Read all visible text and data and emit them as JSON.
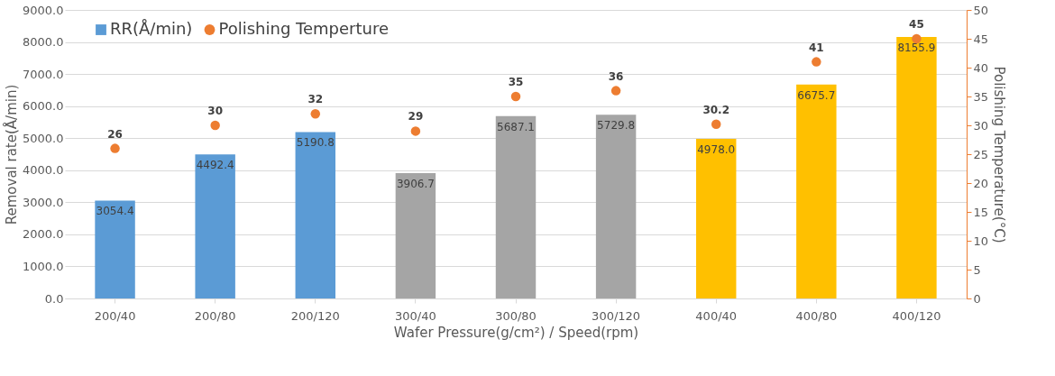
{
  "chart_data": {
    "type": "bar",
    "xlabel": "Wafer Pressure(g/cm²) / Speed(rpm)",
    "ylabel": "Removal rate(Å/min)",
    "y2label": "Polishing Temperature(°C)",
    "categories": [
      "200/40",
      "200/80",
      "200/120",
      "300/40",
      "300/80",
      "300/120",
      "400/40",
      "400/80",
      "400/120"
    ],
    "series": [
      {
        "name": "RR(Å/min)",
        "color": "#5b9bd5",
        "colors": [
          "#5b9bd5",
          "#5b9bd5",
          "#5b9bd5",
          "#a5a5a5",
          "#a5a5a5",
          "#a5a5a5",
          "#ffc000",
          "#ffc000",
          "#ffc000"
        ],
        "values": [
          3054.4,
          4492.4,
          5190.8,
          3906.7,
          5687.1,
          5729.8,
          4978.0,
          6675.7,
          8155.9
        ],
        "value_labels": [
          "3054.4",
          "4492.4",
          "5190.8",
          "3906.7",
          "5687.1",
          "5729.8",
          "4978.0",
          "6675.7",
          "8155.9"
        ]
      },
      {
        "name": "Polishing Temperture",
        "type": "scatter",
        "axis": "y2",
        "color": "#ed7d31",
        "marker": "circle",
        "values": [
          26,
          30,
          32,
          29,
          35,
          36,
          30.2,
          41,
          45
        ],
        "value_labels": [
          "26",
          "30",
          "32",
          "29",
          "35",
          "36",
          "30.2",
          "41",
          "45"
        ]
      }
    ],
    "ylim": [
      0,
      9000
    ],
    "yticks": [
      {
        "value": 0,
        "label": "0.0"
      },
      {
        "value": 1000,
        "label": "1000.0"
      },
      {
        "value": 2000,
        "label": "2000.0"
      },
      {
        "value": 3000,
        "label": "3000.0"
      },
      {
        "value": 4000,
        "label": "4000.0"
      },
      {
        "value": 5000,
        "label": "5000.0"
      },
      {
        "value": 6000,
        "label": "6000.0"
      },
      {
        "value": 7000,
        "label": "7000.0"
      },
      {
        "value": 8000,
        "label": "8000.0"
      },
      {
        "value": 9000,
        "label": "9000.0"
      }
    ],
    "y2lim": [
      0,
      50
    ],
    "y2ticks": [
      0,
      5,
      10,
      15,
      20,
      25,
      30,
      35,
      40,
      45,
      50
    ],
    "grid": "y",
    "legend": "top left"
  }
}
